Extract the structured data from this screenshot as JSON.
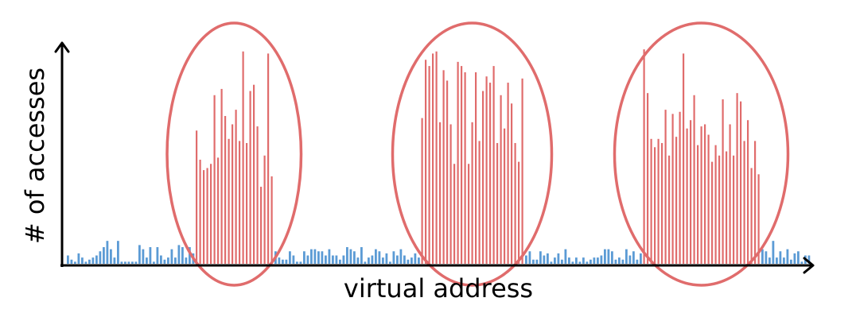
{
  "chart_data": {
    "type": "bar",
    "xlabel": "virtual address",
    "ylabel": "# of accesses",
    "ylim": [
      0,
      1
    ],
    "grid": false,
    "legend": "none",
    "colors": {
      "cold": "#5b9bd5",
      "hot": "#e06c6c"
    },
    "series": [
      {
        "segment": "cold-1",
        "hot": false,
        "values": [
          0.04,
          0.02,
          0.01,
          0.05,
          0.03,
          0.01,
          0.02,
          0.03,
          0.04,
          0.06,
          0.08,
          0.11,
          0.07,
          0.03,
          0.11,
          0.01,
          0.01,
          0.01,
          0.01,
          0.01,
          0.09,
          0.07,
          0.03,
          0.08,
          0.01,
          0.08,
          0.04,
          0.02,
          0.03,
          0.07,
          0.03,
          0.09,
          0.08,
          0.03,
          0.08,
          0.05
        ]
      },
      {
        "segment": "hot-1",
        "hot": true,
        "values": [
          0.64,
          0.5,
          0.45,
          0.46,
          0.48,
          0.81,
          0.51,
          0.84,
          0.71,
          0.6,
          0.67,
          0.74,
          0.59,
          1.02,
          0.58,
          0.83,
          0.86,
          0.66,
          0.37,
          0.52,
          1.01,
          0.42
        ]
      },
      {
        "segment": "cold-2",
        "hot": false,
        "values": [
          0.06,
          0.03,
          0.02,
          0.02,
          0.06,
          0.04,
          0.01,
          0.01,
          0.06,
          0.04,
          0.07,
          0.07,
          0.06,
          0.06,
          0.04,
          0.07,
          0.04,
          0.04,
          0.02,
          0.04,
          0.08,
          0.07,
          0.06,
          0.03,
          0.08,
          0.01,
          0.03,
          0.04,
          0.07,
          0.06,
          0.03,
          0.05,
          0.01,
          0.06,
          0.04,
          0.07,
          0.04,
          0.02,
          0.03,
          0.05,
          0.03
        ]
      },
      {
        "segment": "hot-2",
        "hot": true,
        "values": [
          0.7,
          0.98,
          0.95,
          1.01,
          1.02,
          0.68,
          0.93,
          0.88,
          0.67,
          0.48,
          0.97,
          0.95,
          0.92,
          0.48,
          0.68,
          0.92,
          0.59,
          0.83,
          0.9,
          0.87,
          0.95,
          0.58,
          0.81,
          0.65,
          0.87,
          0.77,
          0.58,
          0.49,
          0.89
        ]
      },
      {
        "segment": "cold-3",
        "hot": false,
        "values": [
          0.04,
          0.06,
          0.02,
          0.02,
          0.06,
          0.04,
          0.05,
          0.01,
          0.03,
          0.05,
          0.02,
          0.07,
          0.03,
          0.01,
          0.03,
          0.01,
          0.03,
          0.01,
          0.02,
          0.03,
          0.03,
          0.04,
          0.07,
          0.07,
          0.06,
          0.02,
          0.03,
          0.02,
          0.07,
          0.04,
          0.06,
          0.02,
          0.05
        ]
      },
      {
        "segment": "hot-3",
        "hot": true,
        "values": [
          1.03,
          0.82,
          0.6,
          0.56,
          0.6,
          0.58,
          0.74,
          0.52,
          0.72,
          0.61,
          0.73,
          1.01,
          0.65,
          0.69,
          0.81,
          0.57,
          0.66,
          0.67,
          0.62,
          0.49,
          0.57,
          0.52,
          0.79,
          0.54,
          0.67,
          0.52,
          0.82,
          0.78,
          0.59,
          0.69,
          0.46,
          0.59,
          0.43
        ]
      },
      {
        "segment": "cold-4",
        "hot": false,
        "values": [
          0.07,
          0.06,
          0.03,
          0.11,
          0.03,
          0.06,
          0.03,
          0.07,
          0.02,
          0.05,
          0.06,
          0.01,
          0.04,
          0.04
        ]
      }
    ],
    "clusters": [
      "hot-1",
      "hot-2",
      "hot-3"
    ]
  }
}
